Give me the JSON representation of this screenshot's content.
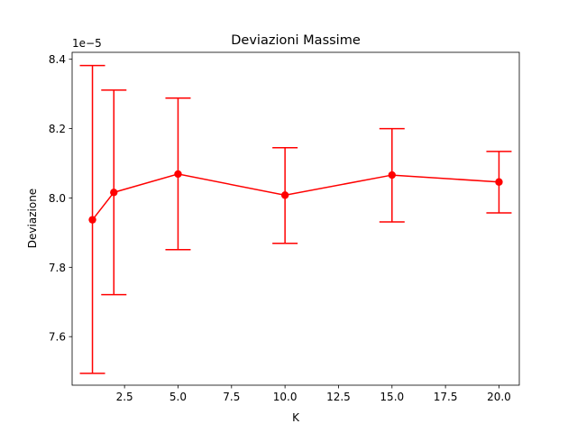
{
  "chart_data": {
    "type": "line",
    "title": "Deviazioni Massime",
    "xlabel": "K",
    "ylabel": "Deviazione",
    "y_offset_label": "1e−5",
    "xlim": [
      0.05,
      20.95
    ],
    "ylim": [
      7.46,
      8.42
    ],
    "xticks": [
      2.5,
      5.0,
      7.5,
      10.0,
      12.5,
      15.0,
      17.5,
      20.0
    ],
    "xtick_labels": [
      "2.5",
      "5.0",
      "7.5",
      "10.0",
      "12.5",
      "15.0",
      "17.5",
      "20.0"
    ],
    "yticks": [
      7.6,
      7.8,
      8.0,
      8.2,
      8.4
    ],
    "ytick_labels": [
      "7.6",
      "7.8",
      "8.0",
      "8.2",
      "8.4"
    ],
    "grid": false,
    "series": [
      {
        "color": "#ff0000",
        "x": [
          1,
          2,
          5,
          10,
          15,
          20
        ],
        "y": [
          7.937,
          8.016,
          8.069,
          8.008,
          8.066,
          8.046
        ],
        "yerr_lower": [
          7.494,
          7.721,
          7.851,
          7.869,
          7.931,
          7.957
        ],
        "yerr_upper": [
          8.382,
          8.311,
          8.288,
          8.145,
          8.2,
          8.134
        ]
      }
    ]
  }
}
